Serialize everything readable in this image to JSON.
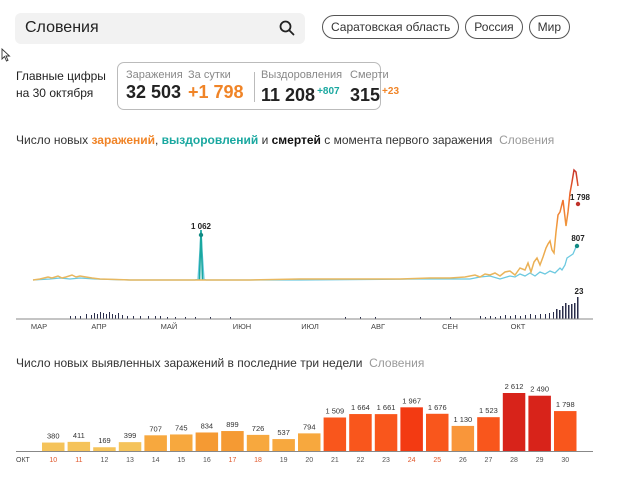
{
  "search": {
    "value": "Словения",
    "icon": "search-icon"
  },
  "region_chips": [
    "Саратовская область",
    "Россия",
    "Мир"
  ],
  "summary": {
    "label_line1": "Главные цифры",
    "label_line2": "на 30 октября",
    "infections_label": "Заражения",
    "infections_value": "32 503",
    "daily_label": "За сутки",
    "daily_value": "+1 798",
    "recovered_label": "Выздоровления",
    "recovered_value": "11 208",
    "recovered_delta": "+807",
    "deaths_label": "Смерти",
    "deaths_value": "315",
    "deaths_delta": "+23"
  },
  "colors": {
    "infections": "#f08427",
    "recovered": "#1aa8a0",
    "recovered_line": "#5bc8e0",
    "deaths": "#1c1f3a",
    "peak_red": "#d8231a"
  },
  "chart1": {
    "title_part1": "Число новых ",
    "title_infections": "заражений",
    "title_comma": ", ",
    "title_recovered": "выздоровлений",
    "title_and": " и ",
    "title_deaths": "смертей",
    "title_part2": " с момента первого заражения",
    "title_region": "Словения",
    "months": [
      "МАР",
      "АПР",
      "МАЙ",
      "ИЮН",
      "ИЮЛ",
      "АВГ",
      "СЕН",
      "ОКТ"
    ],
    "annotation_recovered_spike": "1 062",
    "annotation_infections_last": "1 798",
    "annotation_recovered_last": "807",
    "annotation_deaths_last": "23"
  },
  "chart2": {
    "title": "Число новых выявленных заражений в последние три недели",
    "title_region": "Словения",
    "month_label": "ОКТ"
  },
  "chart_data": [
    {
      "type": "line",
      "title": "Число новых заражений, выздоровлений и смертей с момента первого заражения — Словения",
      "x_ticks": [
        "МАР",
        "АПР",
        "МАЙ",
        "ИЮН",
        "ИЮЛ",
        "АВГ",
        "СЕН",
        "ОКТ"
      ],
      "series": [
        {
          "name": "заражений",
          "color": "#f08427",
          "last_value": 1798,
          "peak_approx": 2612
        },
        {
          "name": "выздоровлений",
          "color": "#1aa8a0",
          "last_value": 807,
          "spike_value": 1062,
          "spike_date": "май"
        },
        {
          "name": "смертей",
          "color": "#1c1f3a",
          "type": "bar",
          "last_value": 23
        }
      ],
      "annotations": [
        "1 062",
        "1 798",
        "807",
        "23"
      ],
      "grid": false
    },
    {
      "type": "bar",
      "title": "Число новых выявленных заражений в последние три недели — Словения",
      "xlabel": "ОКТ",
      "categories": [
        "10",
        "11",
        "12",
        "13",
        "14",
        "15",
        "16",
        "17",
        "18",
        "19",
        "20",
        "21",
        "22",
        "23",
        "24",
        "25",
        "26",
        "27",
        "28",
        "29",
        "30"
      ],
      "weekend": [
        "10",
        "11",
        "17",
        "18",
        "24",
        "25"
      ],
      "values": [
        380,
        411,
        169,
        399,
        707,
        745,
        834,
        899,
        726,
        537,
        794,
        1509,
        1664,
        1661,
        1967,
        1676,
        1130,
        1523,
        2612,
        2490,
        1798
      ],
      "labels": [
        "380",
        "411",
        "169",
        "399",
        "707",
        "745",
        "834",
        "899",
        "726",
        "537",
        "794",
        "1 509",
        "1 664",
        "1 661",
        "1 967",
        "1 676",
        "1 130",
        "1 523",
        "2 612",
        "2 490",
        "1 798"
      ],
      "ylim": [
        0,
        2700
      ],
      "grid": false
    }
  ]
}
